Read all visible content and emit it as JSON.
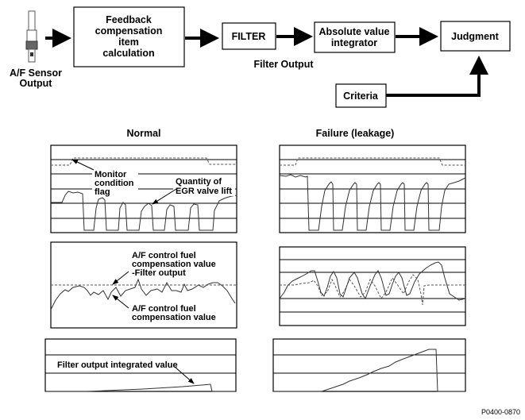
{
  "flow": {
    "sensor_label_line1": "A/F Sensor",
    "sensor_label_line2": "Output",
    "feedback_box": [
      "Feedback",
      "compensation",
      "item",
      "calculation"
    ],
    "filter_box": "FILTER",
    "integrator_box": [
      "Absolute value",
      "integrator"
    ],
    "judgment_box": "Judgment",
    "criteria_box": "Criteria",
    "filter_output_label": "Filter Output"
  },
  "columns": {
    "normal_title": "Normal",
    "failure_title": "Failure (leakage)"
  },
  "annotations": {
    "monitor_flag": [
      "Monitor",
      "condition",
      "flag"
    ],
    "egr_lift": [
      "Quantity of",
      "EGR valve lift"
    ],
    "filter_output": [
      "A/F control fuel",
      "compensation value",
      "-Filter output"
    ],
    "comp_value": [
      "A/F control fuel",
      "compensation value"
    ],
    "integrated": "Filter output integrated value"
  },
  "figure_id": "P0400-0870"
}
